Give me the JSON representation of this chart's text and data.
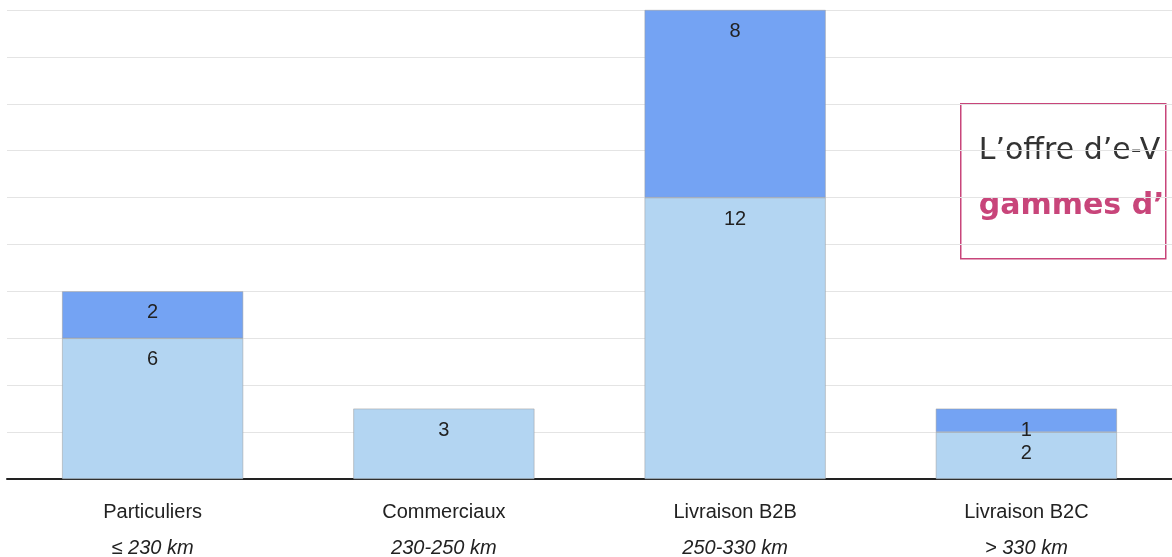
{
  "chart_data": {
    "type": "bar",
    "stacked": true,
    "data_labels": true,
    "grid": "y",
    "tick_labels": "x",
    "categories": [
      "Particuliers\n≤ 230 km",
      "Commerciaux\n230-250 km",
      "Livraison B2B\n250-330 km",
      "Livraison B2C\n> 330 km"
    ],
    "series": [
      {
        "color": "#b3d5f2",
        "values": [
          6,
          3,
          12,
          2
        ]
      },
      {
        "color": "#74a3f3",
        "values": [
          2,
          null,
          8,
          1
        ]
      }
    ],
    "ylim": [
      0,
      20
    ],
    "yticks": [
      {
        "value": 0,
        "label": null
      },
      {
        "value": 2,
        "label": null
      },
      {
        "value": 4,
        "label": null
      },
      {
        "value": 6,
        "label": null
      },
      {
        "value": 8,
        "label": null
      },
      {
        "value": 10,
        "label": null
      },
      {
        "value": 12,
        "label": null
      },
      {
        "value": 14,
        "label": null
      },
      {
        "value": 16,
        "label": null
      },
      {
        "value": 18,
        "label": null
      },
      {
        "value": 20,
        "label": null
      }
    ],
    "annotations": [
      "L’offre d’e-V",
      "gammes d’"
    ]
  }
}
